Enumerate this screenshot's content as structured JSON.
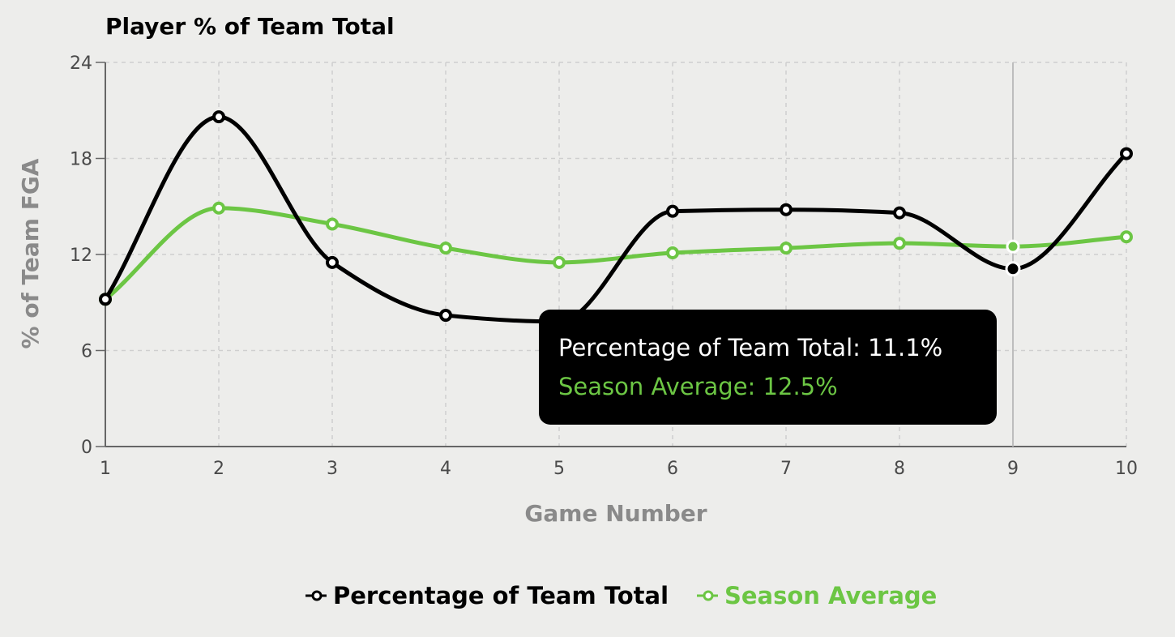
{
  "chart_data": {
    "type": "line",
    "title": "Player % of Team Total",
    "xlabel": "Game Number",
    "ylabel": "% of Team FGA",
    "x": [
      1,
      2,
      3,
      4,
      5,
      6,
      7,
      8,
      9,
      10
    ],
    "xlim": [
      1,
      10
    ],
    "ylim": [
      0,
      24
    ],
    "yticks": [
      0,
      6,
      12,
      18,
      24
    ],
    "grid": true,
    "legend_position": "bottom",
    "series": [
      {
        "name": "Percentage of Team Total",
        "color": "#000000",
        "values": [
          9.2,
          20.6,
          11.5,
          8.2,
          7.8,
          14.7,
          14.8,
          14.6,
          11.1,
          18.3
        ]
      },
      {
        "name": "Season Average",
        "color": "#6cc644",
        "values": [
          9.2,
          14.9,
          13.9,
          12.4,
          11.5,
          12.1,
          12.4,
          12.7,
          12.5,
          13.1
        ]
      }
    ],
    "hovered_index": 8,
    "tooltip": {
      "lines": [
        {
          "text": "Percentage of Team Total: 11.1%",
          "color": "#ffffff"
        },
        {
          "text": "Season Average: 12.5%",
          "color": "#6cc644"
        }
      ]
    }
  }
}
